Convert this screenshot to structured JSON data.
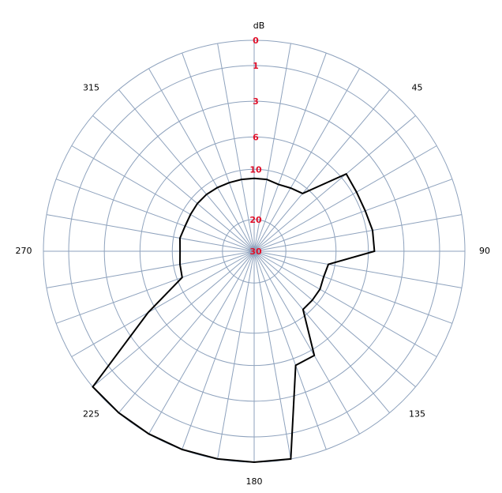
{
  "chart_data": {
    "type": "polar",
    "r_label": "dB",
    "rlim": [
      30,
      0
    ],
    "rticks": [
      0,
      1,
      3,
      6,
      10,
      20,
      30
    ],
    "xticks": [
      45,
      90,
      135,
      180,
      225,
      270,
      315
    ],
    "x": [
      0,
      10,
      20,
      30,
      40,
      50,
      60,
      70,
      80,
      90,
      100,
      110,
      120,
      130,
      140,
      150,
      160,
      170,
      180,
      190,
      200,
      210,
      220,
      230,
      240,
      250,
      260,
      270,
      280,
      290,
      300,
      310,
      320,
      330,
      340,
      350
    ],
    "values": [
      11.4,
      11.4,
      11.7,
      11.4,
      11.0,
      5.4,
      5.6,
      5.6,
      5.4,
      5.4,
      11.0,
      11.2,
      10.9,
      10.9,
      10.9,
      5.4,
      5.3,
      0,
      0,
      0,
      0,
      0,
      0,
      0,
      5.2,
      10.8,
      11.0,
      11.2,
      11.0,
      11.3,
      11.3,
      11.2,
      11.2,
      11.3,
      11.4,
      11.4
    ],
    "color": "#000000",
    "grid": true
  }
}
